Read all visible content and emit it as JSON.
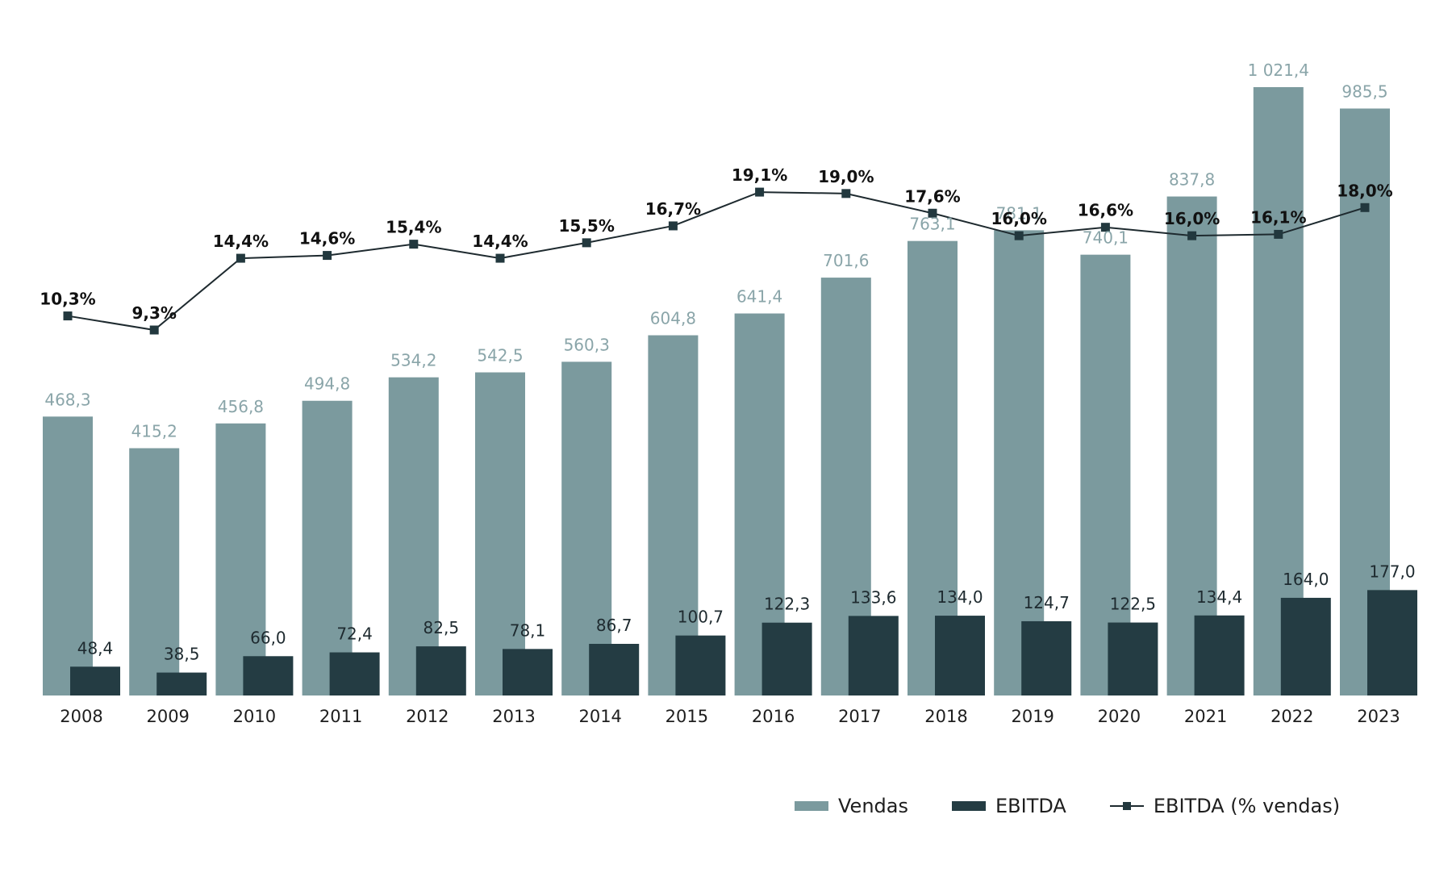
{
  "chart_data": {
    "type": "bar",
    "categories": [
      "2008",
      "2009",
      "2010",
      "2011",
      "2012",
      "2013",
      "2014",
      "2015",
      "2016",
      "2017",
      "2018",
      "2019",
      "2020",
      "2021",
      "2022",
      "2023"
    ],
    "series": [
      {
        "name": "Vendas",
        "type": "bar",
        "color": "#7b9a9e",
        "values": [
          468.3,
          415.2,
          456.8,
          494.8,
          534.2,
          542.5,
          560.3,
          604.8,
          641.4,
          701.6,
          763.1,
          781.1,
          740.1,
          837.8,
          1021.4,
          985.5
        ],
        "labels": [
          "468,3",
          "415,2",
          "456,8",
          "494,8",
          "534,2",
          "542,5",
          "560,3",
          "604,8",
          "641,4",
          "701,6",
          "763,1",
          "781,1",
          "740,1",
          "837,8",
          "1 021,4",
          "985,5"
        ]
      },
      {
        "name": "EBITDA",
        "type": "bar",
        "color": "#243c43",
        "values": [
          48.4,
          38.5,
          66.0,
          72.4,
          82.5,
          78.1,
          86.7,
          100.7,
          122.3,
          133.6,
          134.0,
          124.7,
          122.5,
          134.4,
          164.0,
          177.0
        ],
        "labels": [
          "48,4",
          "38,5",
          "66,0",
          "72,4",
          "82,5",
          "78,1",
          "86,7",
          "100,7",
          "122,3",
          "133,6",
          "134,0",
          "124,7",
          "122,5",
          "134,4",
          "164,0",
          "177,0"
        ]
      },
      {
        "name": "EBITDA (% vendas)",
        "type": "line",
        "color": "#1e2a2f",
        "values": [
          10.3,
          9.3,
          14.4,
          14.6,
          15.4,
          14.4,
          15.5,
          16.7,
          19.1,
          19.0,
          17.6,
          16.0,
          16.6,
          16.0,
          16.1,
          18.0
        ],
        "labels": [
          "10,3%",
          "9,3%",
          "14,4%",
          "14,6%",
          "15,4%",
          "14,4%",
          "15,5%",
          "16,7%",
          "19,1%",
          "19,0%",
          "17,6%",
          "16,0%",
          "16,6%",
          "16,0%",
          "16,1%",
          "18,0%"
        ]
      }
    ],
    "legend": "bottom-right",
    "grid": false
  }
}
